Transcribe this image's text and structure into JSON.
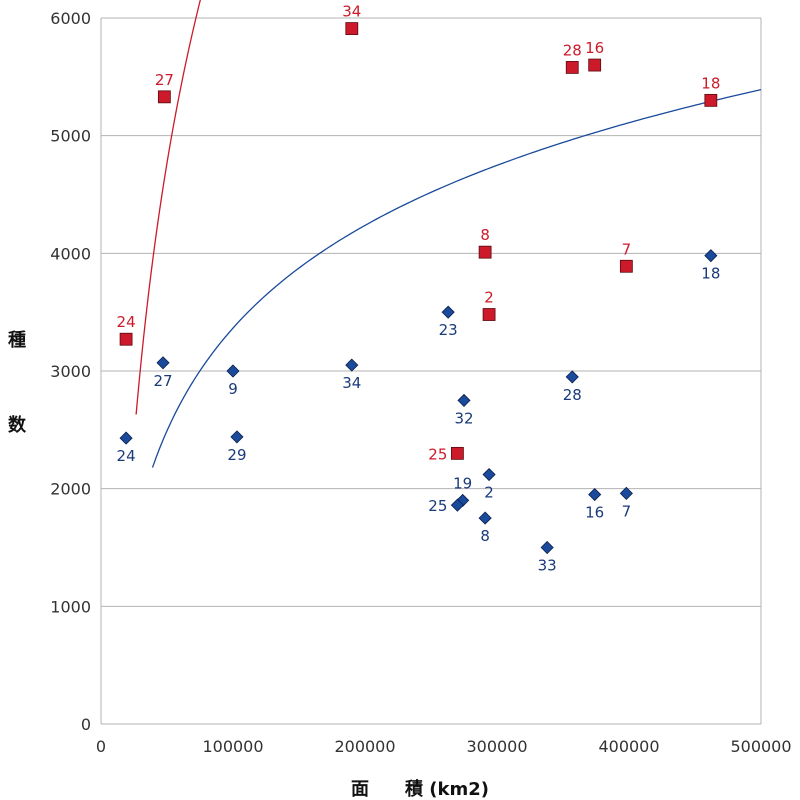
{
  "chart_data": {
    "type": "scatter",
    "title": "",
    "xlabel": "面　　積 (km2)",
    "ylabel": [
      "種",
      "数"
    ],
    "xlim": [
      0,
      500000
    ],
    "ylim": [
      0,
      6000
    ],
    "x_ticks": [
      0,
      100000,
      200000,
      300000,
      400000,
      500000
    ],
    "x_tick_labels": [
      "0",
      "100000",
      "200000",
      "300000",
      "400000",
      "500000"
    ],
    "y_ticks": [
      0,
      1000,
      2000,
      3000,
      4000,
      5000,
      6000
    ],
    "y_tick_labels": [
      "0",
      "1000",
      "2000",
      "3000",
      "4000",
      "5000",
      "6000"
    ],
    "grid": "horizontal",
    "legend": "none",
    "series": [
      {
        "marker": "diamond",
        "color": "#1a4a9c",
        "label_color": "#1a3a7a",
        "points": [
          {
            "label": "24",
            "x": 19000,
            "y": 2430,
            "label_pos": "below"
          },
          {
            "label": "27",
            "x": 47000,
            "y": 3070,
            "label_pos": "below"
          },
          {
            "label": "9",
            "x": 100000,
            "y": 3000,
            "label_pos": "below"
          },
          {
            "label": "29",
            "x": 103000,
            "y": 2440,
            "label_pos": "below"
          },
          {
            "label": "34",
            "x": 190000,
            "y": 3050,
            "label_pos": "below"
          },
          {
            "label": "23",
            "x": 263000,
            "y": 3500,
            "label_pos": "below"
          },
          {
            "label": "32",
            "x": 275000,
            "y": 2750,
            "label_pos": "below"
          },
          {
            "label": "19",
            "x": 274000,
            "y": 1900,
            "label_pos": "above"
          },
          {
            "label": "25",
            "x": 270000,
            "y": 1860,
            "label_pos": "left"
          },
          {
            "label": "2",
            "x": 294000,
            "y": 2120,
            "label_pos": "below"
          },
          {
            "label": "8",
            "x": 291000,
            "y": 1750,
            "label_pos": "below"
          },
          {
            "label": "33",
            "x": 338000,
            "y": 1500,
            "label_pos": "below"
          },
          {
            "label": "28",
            "x": 357000,
            "y": 2950,
            "label_pos": "below"
          },
          {
            "label": "16",
            "x": 374000,
            "y": 1950,
            "label_pos": "below"
          },
          {
            "label": "7",
            "x": 398000,
            "y": 1960,
            "label_pos": "below"
          },
          {
            "label": "18",
            "x": 462000,
            "y": 3980,
            "label_pos": "below"
          }
        ],
        "trend": {
          "type": "log",
          "a": -11130,
          "b": 1259,
          "x_range": [
            39000,
            500000
          ]
        }
      },
      {
        "marker": "square",
        "color": "#cc1a2a",
        "label_color": "#cc1a2a",
        "points": [
          {
            "label": "24",
            "x": 19000,
            "y": 3270,
            "label_pos": "above"
          },
          {
            "label": "27",
            "x": 48000,
            "y": 5330,
            "label_pos": "above"
          },
          {
            "label": "34",
            "x": 190000,
            "y": 5910,
            "label_pos": "above"
          },
          {
            "label": "8",
            "x": 291000,
            "y": 4010,
            "label_pos": "above"
          },
          {
            "label": "2",
            "x": 294000,
            "y": 3480,
            "label_pos": "above"
          },
          {
            "label": "25",
            "x": 270000,
            "y": 2300,
            "label_pos": "left"
          },
          {
            "label": "28",
            "x": 357000,
            "y": 5580,
            "label_pos": "above"
          },
          {
            "label": "16",
            "x": 374000,
            "y": 5600,
            "label_pos": "above"
          },
          {
            "label": "7",
            "x": 398000,
            "y": 3890,
            "label_pos": "above"
          },
          {
            "label": "18",
            "x": 462000,
            "y": 5300,
            "label_pos": "above"
          }
        ],
        "trend": {
          "type": "log",
          "a": -31900,
          "b": 3389,
          "x_range": [
            26600,
            122500
          ]
        }
      }
    ]
  }
}
